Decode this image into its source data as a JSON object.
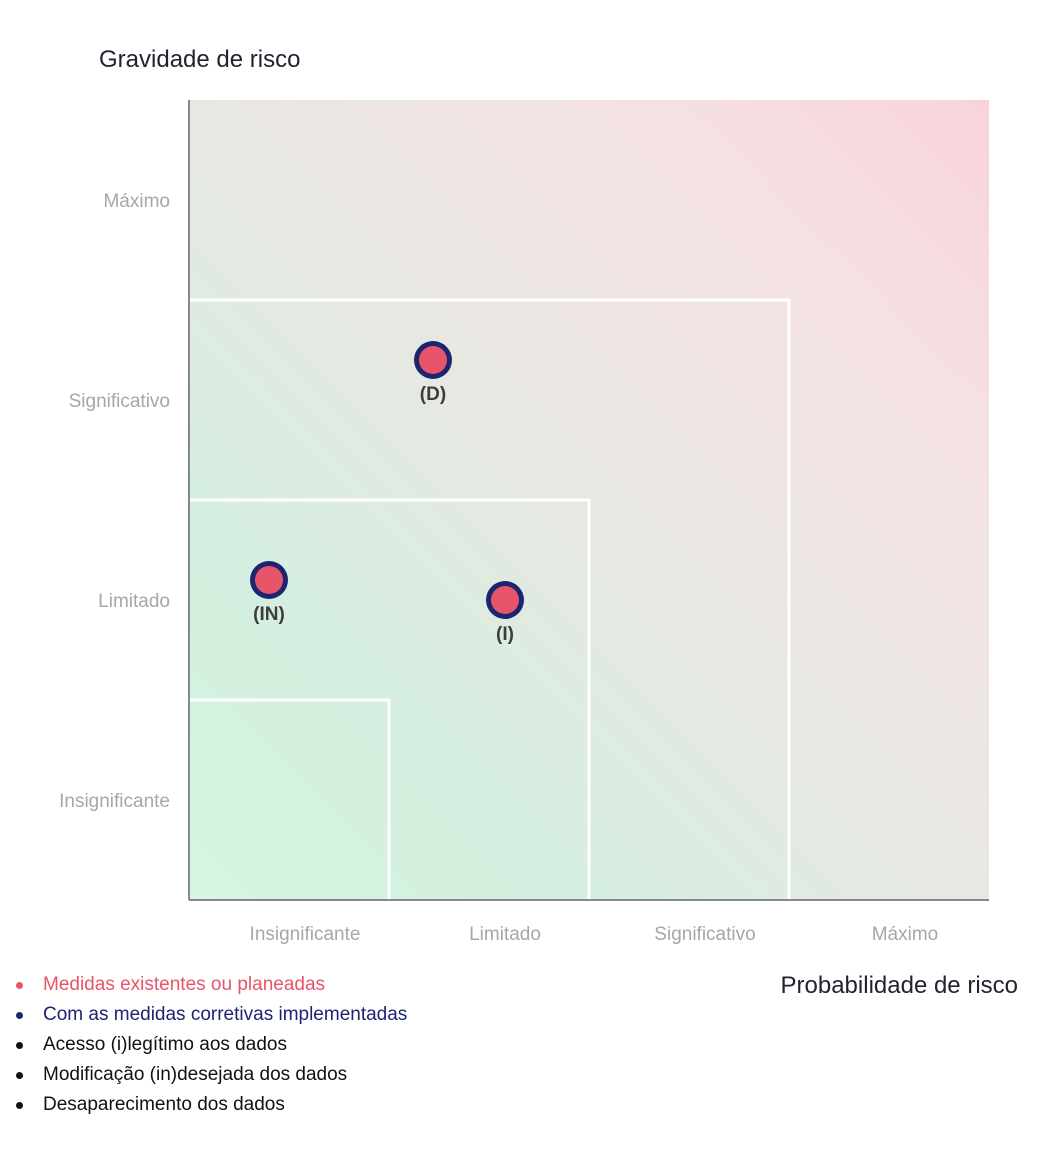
{
  "chart_data": {
    "type": "scatter",
    "ylabel": "Gravidade de risco",
    "xlabel": "Probabilidade de risco",
    "x_categories": [
      "Insignificante",
      "Limitado",
      "Significativo",
      "Máximo"
    ],
    "y_categories": [
      "Insignificante",
      "Limitado",
      "Significativo",
      "Máximo"
    ],
    "xlim": [
      0,
      4
    ],
    "ylim": [
      0,
      4
    ],
    "background": "gradient green (bottom-left) to red (top-right)",
    "zone_boundaries": [
      1,
      2,
      3
    ],
    "points": [
      {
        "label": "(D)",
        "x": 1.22,
        "y": 2.7
      },
      {
        "label": "(IN)",
        "x": 0.4,
        "y": 1.6
      },
      {
        "label": "(I)",
        "x": 1.58,
        "y": 1.5
      }
    ]
  },
  "legend": [
    {
      "text": "Medidas existentes ou planeadas",
      "color": "#e8546a"
    },
    {
      "text": "Com as medidas corretivas implementadas",
      "color": "#1c2570"
    },
    {
      "text": "Acesso (i)legítimo aos dados",
      "color": "#111111"
    },
    {
      "text": "Modificação (in)desejada dos dados",
      "color": "#111111"
    },
    {
      "text": "Desaparecimento dos dados",
      "color": "#111111"
    }
  ],
  "colors": {
    "point_fill": "#e8546a",
    "point_outline": "#1c2570",
    "low_risk": "#cdf2dc",
    "high_risk": "#f8d3da",
    "zone_line": "#ffffff",
    "axis": "#888888"
  }
}
